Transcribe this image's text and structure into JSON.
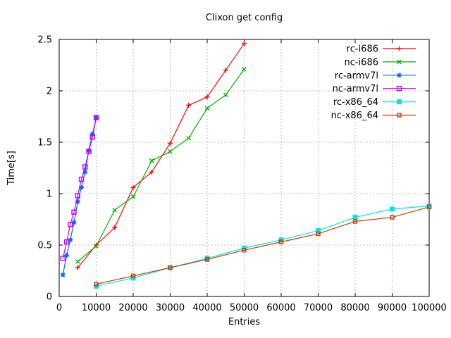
{
  "figure": {
    "title": "Clixon get config",
    "xlabel": "Entries",
    "ylabel": "Time[s]"
  },
  "chart_data": {
    "type": "line",
    "title": "Clixon get config",
    "xlabel": "Entries",
    "ylabel": "Time[s]",
    "xlim": [
      0,
      100000
    ],
    "ylim": [
      0,
      2.5
    ],
    "xticks": [
      0,
      10000,
      20000,
      30000,
      40000,
      50000,
      60000,
      70000,
      80000,
      90000,
      100000
    ],
    "yticks": [
      0,
      0.5,
      1,
      1.5,
      2,
      2.5
    ],
    "grid": true,
    "grid_color": "#a8a8a8",
    "border_color": "#000000",
    "legend_position": "top-right-inside",
    "legend_entries": [
      "rc-i686",
      "nc-i686",
      "rc-armv7l",
      "nc-armv7l",
      "rc-x86_64",
      "nc-x86_64"
    ],
    "series": [
      {
        "name": "rc-i686",
        "color": "#ff0000",
        "marker": "plus",
        "x": [
          5000,
          10000,
          15000,
          20000,
          25000,
          30000,
          35000,
          40000,
          45000,
          50000
        ],
        "y": [
          0.28,
          0.5,
          0.67,
          1.06,
          1.21,
          1.49,
          1.86,
          1.94,
          2.2,
          2.46
        ]
      },
      {
        "name": "nc-i686",
        "color": "#00b000",
        "marker": "cross",
        "x": [
          5000,
          10000,
          15000,
          20000,
          25000,
          30000,
          35000,
          40000,
          45000,
          50000
        ],
        "y": [
          0.34,
          0.49,
          0.84,
          0.97,
          1.32,
          1.41,
          1.54,
          1.83,
          1.96,
          2.21
        ]
      },
      {
        "name": "rc-armv7l",
        "color": "#0066ff",
        "marker": "asterisk",
        "x": [
          1000,
          2000,
          3000,
          4000,
          5000,
          6000,
          7000,
          8000,
          9000,
          10000
        ],
        "y": [
          0.21,
          0.4,
          0.55,
          0.72,
          0.92,
          1.06,
          1.21,
          1.42,
          1.58,
          1.74
        ]
      },
      {
        "name": "nc-armv7l",
        "color": "#c000ff",
        "marker": "square-open",
        "x": [
          1000,
          2000,
          3000,
          4000,
          5000,
          6000,
          7000,
          8000,
          9000,
          10000
        ],
        "y": [
          0.37,
          0.53,
          0.7,
          0.82,
          0.98,
          1.14,
          1.26,
          1.41,
          1.55,
          1.74
        ]
      },
      {
        "name": "rc-x86_64",
        "color": "#00e5e5",
        "marker": "square-filled",
        "x": [
          10000,
          20000,
          30000,
          40000,
          50000,
          60000,
          70000,
          80000,
          90000,
          100000
        ],
        "y": [
          0.1,
          0.18,
          0.28,
          0.37,
          0.47,
          0.55,
          0.64,
          0.77,
          0.85,
          0.88
        ]
      },
      {
        "name": "nc-x86_64",
        "color": "#c04000",
        "marker": "square-open-small",
        "x": [
          10000,
          20000,
          30000,
          40000,
          50000,
          60000,
          70000,
          80000,
          90000,
          100000
        ],
        "y": [
          0.12,
          0.2,
          0.28,
          0.36,
          0.45,
          0.53,
          0.61,
          0.73,
          0.77,
          0.87
        ]
      }
    ]
  }
}
